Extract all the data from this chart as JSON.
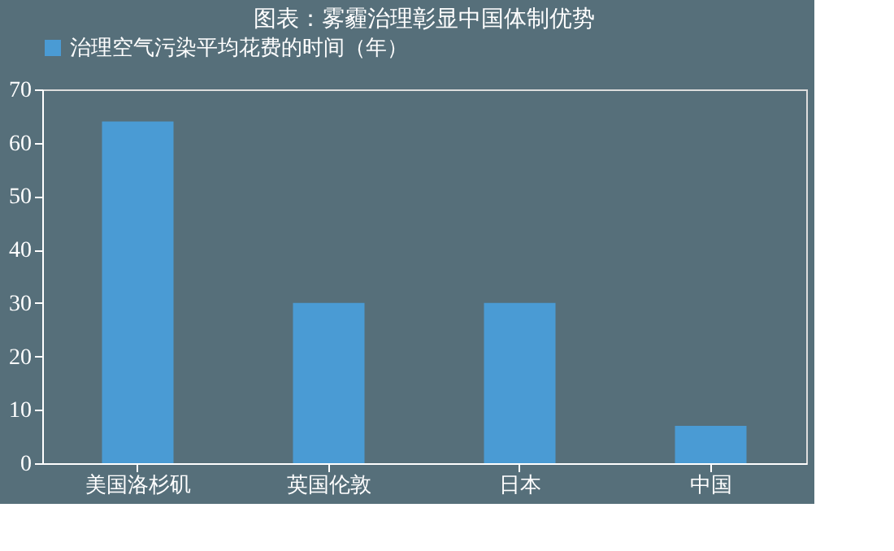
{
  "chart_data": {
    "type": "bar",
    "title": "图表：雾霾治理彰显中国体制优势",
    "categories": [
      "美国洛杉矶",
      "英国伦敦",
      "日本",
      "中国"
    ],
    "series": [
      {
        "name": "治理空气污染平均花费的时间（年）",
        "color": "#4a9bd4",
        "values": [
          64,
          30,
          30,
          7
        ]
      }
    ],
    "ylim": [
      0,
      70
    ],
    "yticks": [
      0,
      10,
      20,
      30,
      40,
      50,
      60,
      70
    ],
    "grid": false,
    "legend": "top"
  }
}
